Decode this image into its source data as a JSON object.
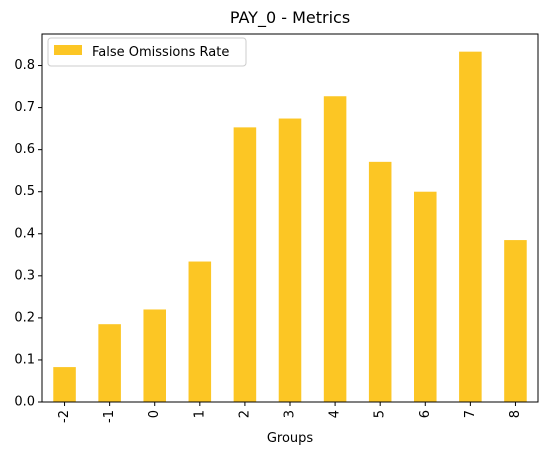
{
  "chart_data": {
    "type": "bar",
    "title": "PAY_0 - Metrics",
    "xlabel": "Groups",
    "ylabel": "",
    "categories": [
      "-2",
      "-1",
      "0",
      "1",
      "2",
      "3",
      "4",
      "5",
      "6",
      "7",
      "8"
    ],
    "series": [
      {
        "name": "False Omissions Rate",
        "color": "#fcc624",
        "values": [
          0.083,
          0.185,
          0.22,
          0.334,
          0.653,
          0.674,
          0.727,
          0.571,
          0.5,
          0.833,
          0.385
        ]
      }
    ],
    "yticks": [
      "0.0",
      "0.1",
      "0.2",
      "0.3",
      "0.4",
      "0.5",
      "0.6",
      "0.7",
      "0.8"
    ],
    "ylim": [
      0,
      0.875
    ],
    "grid": false,
    "legend_position": "upper-left"
  }
}
